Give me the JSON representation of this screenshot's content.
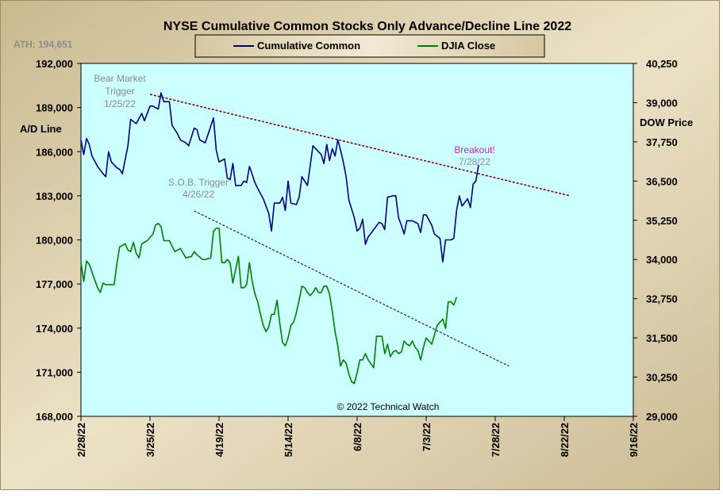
{
  "chart_data": {
    "type": "line",
    "title": "NYSE Cumulative Common Stocks Only Advance/Decline Line 2022",
    "ath_label": "ATH: 194,651",
    "y_left_label": "A/D Line",
    "y_right_label": "DOW Price",
    "copyright": "© 2022 Technical Watch",
    "ylim_left": [
      168000,
      192000
    ],
    "ylim_right": [
      29000,
      40250
    ],
    "yticks_left": [
      "168,000",
      "171,000",
      "174,000",
      "177,000",
      "180,000",
      "183,000",
      "186,000",
      "189,000",
      "192,000"
    ],
    "yticks_right": [
      "29,000",
      "30,250",
      "31,500",
      "32,750",
      "34,000",
      "35,250",
      "36,500",
      "37,750",
      "39,000",
      "40,250"
    ],
    "xticks": [
      "2/28/22",
      "3/25/22",
      "4/19/22",
      "5/14/22",
      "6/8/22",
      "7/3/22",
      "7/28/22",
      "8/22/22",
      "9/16/22"
    ],
    "xlim_days": [
      0,
      200
    ],
    "legend": {
      "position": "top",
      "entries": [
        "Cumulative Common",
        "DJIA Close"
      ]
    },
    "colors": {
      "panel_bg": "#d8c9a2",
      "plot_bg": "#ccffff",
      "ad_line": "#000080",
      "djia": "#008000",
      "resistance": "#8b0000",
      "support": "#333333",
      "annotation_gray": "#8c8c8c",
      "breakout_color": "#cc22cc"
    },
    "annotations": {
      "bear": [
        "Bear Market",
        "Trigger",
        "1/25/22"
      ],
      "sob": [
        "S.O.B. Trigger",
        "4/26/22"
      ],
      "breakout": [
        "Breakout!",
        "7/28/22"
      ]
    },
    "trendlines": {
      "resistance": {
        "name": "A/D resistance",
        "points": [
          [
            25,
            189900
          ],
          [
            177,
            183000
          ]
        ],
        "axis": "left"
      },
      "support": {
        "name": "DJIA support",
        "points": [
          [
            41,
            35550
          ],
          [
            155,
            30600
          ]
        ],
        "axis": "right"
      }
    },
    "series": [
      {
        "name": "Cumulative Common",
        "axis": "left",
        "points": [
          [
            0,
            186800
          ],
          [
            1,
            185800
          ],
          [
            2,
            186900
          ],
          [
            3,
            186500
          ],
          [
            4,
            185700
          ],
          [
            6,
            185000
          ],
          [
            8,
            184500
          ],
          [
            9,
            184300
          ],
          [
            10,
            186000
          ],
          [
            11,
            185300
          ],
          [
            13,
            184900
          ],
          [
            14,
            184800
          ],
          [
            15,
            184500
          ],
          [
            17,
            186400
          ],
          [
            18,
            188200
          ],
          [
            20,
            187900
          ],
          [
            22,
            188600
          ],
          [
            23,
            188100
          ],
          [
            25,
            189100
          ],
          [
            26,
            189100
          ],
          [
            28,
            188900
          ],
          [
            29,
            190000
          ],
          [
            30,
            189400
          ],
          [
            32,
            189400
          ],
          [
            33,
            187800
          ],
          [
            35,
            187200
          ],
          [
            36,
            186800
          ],
          [
            38,
            186600
          ],
          [
            39,
            186400
          ],
          [
            41,
            187600
          ],
          [
            42,
            187500
          ],
          [
            43,
            186800
          ],
          [
            45,
            186600
          ],
          [
            48,
            188300
          ],
          [
            49,
            186100
          ],
          [
            50,
            185300
          ],
          [
            52,
            185500
          ],
          [
            53,
            184200
          ],
          [
            54,
            184100
          ],
          [
            55,
            185200
          ],
          [
            56,
            183700
          ],
          [
            58,
            183700
          ],
          [
            59,
            184000
          ],
          [
            60,
            183900
          ],
          [
            61,
            185000
          ],
          [
            63,
            183900
          ],
          [
            64,
            183500
          ],
          [
            66,
            182800
          ],
          [
            68,
            181800
          ],
          [
            69,
            180600
          ],
          [
            70,
            182500
          ],
          [
            72,
            182500
          ],
          [
            73,
            182900
          ],
          [
            74,
            182000
          ],
          [
            75,
            184000
          ],
          [
            76,
            182500
          ],
          [
            78,
            182400
          ],
          [
            79,
            182900
          ],
          [
            80,
            184300
          ],
          [
            82,
            183700
          ],
          [
            84,
            186400
          ],
          [
            86,
            186000
          ],
          [
            87,
            185800
          ],
          [
            88,
            185200
          ],
          [
            89,
            186500
          ],
          [
            90,
            185400
          ],
          [
            91,
            186200
          ],
          [
            92,
            185700
          ],
          [
            93,
            186800
          ],
          [
            94,
            186100
          ],
          [
            95,
            185300
          ],
          [
            96,
            184300
          ],
          [
            97,
            182700
          ],
          [
            99,
            181500
          ],
          [
            100,
            180600
          ],
          [
            101,
            180800
          ],
          [
            102,
            181400
          ],
          [
            103,
            179700
          ],
          [
            104,
            180200
          ],
          [
            106,
            180700
          ],
          [
            108,
            181200
          ],
          [
            109,
            181100
          ],
          [
            110,
            180700
          ],
          [
            111,
            182900
          ],
          [
            113,
            183000
          ],
          [
            114,
            183000
          ],
          [
            115,
            181500
          ],
          [
            116,
            181000
          ],
          [
            117,
            180400
          ],
          [
            118,
            181300
          ],
          [
            120,
            181300
          ],
          [
            122,
            181100
          ],
          [
            123,
            180500
          ],
          [
            124,
            181700
          ],
          [
            125,
            181700
          ],
          [
            127,
            181000
          ],
          [
            128,
            180400
          ],
          [
            130,
            180100
          ],
          [
            131,
            178500
          ],
          [
            132,
            180000
          ],
          [
            134,
            180000
          ],
          [
            135,
            180100
          ],
          [
            136,
            182000
          ],
          [
            137,
            183000
          ],
          [
            138,
            182300
          ],
          [
            140,
            182800
          ],
          [
            141,
            182200
          ],
          [
            142,
            183800
          ],
          [
            143,
            184000
          ],
          [
            144,
            185100
          ]
        ]
      },
      {
        "name": "DJIA Close",
        "axis": "right",
        "points": [
          [
            0,
            33900
          ],
          [
            1,
            33300
          ],
          [
            2,
            33950
          ],
          [
            3,
            33850
          ],
          [
            4,
            33600
          ],
          [
            6,
            33100
          ],
          [
            7,
            32950
          ],
          [
            8,
            33250
          ],
          [
            9,
            33200
          ],
          [
            12,
            33200
          ],
          [
            13,
            33850
          ],
          [
            14,
            34400
          ],
          [
            16,
            34500
          ],
          [
            17,
            34300
          ],
          [
            18,
            34250
          ],
          [
            19,
            34550
          ],
          [
            20,
            34200
          ],
          [
            21,
            34050
          ],
          [
            22,
            34500
          ],
          [
            24,
            34600
          ],
          [
            25,
            34700
          ],
          [
            26,
            34800
          ],
          [
            27,
            35100
          ],
          [
            28,
            35150
          ],
          [
            29,
            35050
          ],
          [
            30,
            34600
          ],
          [
            32,
            34600
          ],
          [
            34,
            34250
          ],
          [
            36,
            34350
          ],
          [
            37,
            34200
          ],
          [
            38,
            34050
          ],
          [
            40,
            34100
          ],
          [
            41,
            34250
          ],
          [
            42,
            34150
          ],
          [
            44,
            34000
          ],
          [
            45,
            34000
          ],
          [
            47,
            34050
          ],
          [
            48,
            34900
          ],
          [
            49,
            35000
          ],
          [
            50,
            35000
          ],
          [
            51,
            33900
          ],
          [
            52,
            33900
          ],
          [
            53,
            34000
          ],
          [
            54,
            33900
          ],
          [
            55,
            33250
          ],
          [
            57,
            34100
          ],
          [
            58,
            33100
          ],
          [
            59,
            33100
          ],
          [
            60,
            33200
          ],
          [
            61,
            33900
          ],
          [
            62,
            33300
          ],
          [
            63,
            32900
          ],
          [
            64,
            32650
          ],
          [
            65,
            32250
          ],
          [
            66,
            31900
          ],
          [
            67,
            31700
          ],
          [
            68,
            31850
          ],
          [
            69,
            32250
          ],
          [
            70,
            32250
          ],
          [
            71,
            32700
          ],
          [
            72,
            31950
          ],
          [
            73,
            31350
          ],
          [
            74,
            31250
          ],
          [
            75,
            31500
          ],
          [
            76,
            31900
          ],
          [
            77,
            32000
          ],
          [
            78,
            32300
          ],
          [
            79,
            32700
          ],
          [
            80,
            33150
          ],
          [
            81,
            33100
          ],
          [
            82,
            32950
          ],
          [
            83,
            32850
          ],
          [
            84,
            32950
          ],
          [
            85,
            33100
          ],
          [
            86,
            32950
          ],
          [
            87,
            32950
          ],
          [
            88,
            33150
          ],
          [
            89,
            33150
          ],
          [
            90,
            32900
          ],
          [
            91,
            32350
          ],
          [
            92,
            31700
          ],
          [
            93,
            31250
          ],
          [
            94,
            30600
          ],
          [
            95,
            30800
          ],
          [
            96,
            30700
          ],
          [
            97,
            30350
          ],
          [
            98,
            30100
          ],
          [
            99,
            30050
          ],
          [
            100,
            30400
          ],
          [
            101,
            30800
          ],
          [
            102,
            30800
          ],
          [
            103,
            31000
          ],
          [
            104,
            30800
          ],
          [
            106,
            30550
          ],
          [
            107,
            31550
          ],
          [
            108,
            31550
          ],
          [
            109,
            31550
          ],
          [
            110,
            31000
          ],
          [
            111,
            31300
          ],
          [
            112,
            30900
          ],
          [
            113,
            31050
          ],
          [
            114,
            31100
          ],
          [
            115,
            31000
          ],
          [
            116,
            31050
          ],
          [
            117,
            31400
          ],
          [
            118,
            31300
          ],
          [
            119,
            31250
          ],
          [
            120,
            31400
          ],
          [
            121,
            31200
          ],
          [
            122,
            31100
          ],
          [
            123,
            30800
          ],
          [
            124,
            31200
          ],
          [
            125,
            31500
          ],
          [
            126,
            31400
          ],
          [
            127,
            31300
          ],
          [
            128,
            31600
          ],
          [
            129,
            31900
          ],
          [
            130,
            32000
          ],
          [
            131,
            32100
          ],
          [
            132,
            31800
          ],
          [
            133,
            32650
          ],
          [
            134,
            32650
          ],
          [
            135,
            32550
          ],
          [
            136,
            32800
          ]
        ]
      }
    ]
  }
}
